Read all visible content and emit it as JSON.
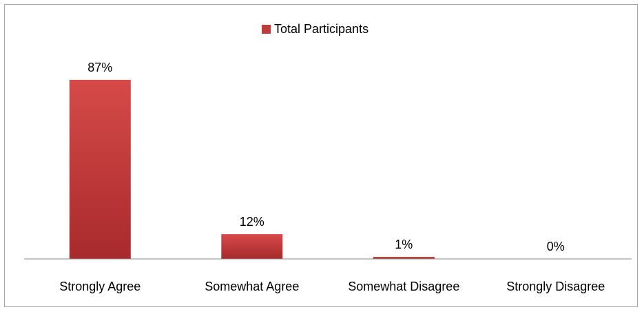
{
  "chart_data": {
    "type": "bar",
    "categories": [
      "Strongly Agree",
      "Somewhat Agree",
      "Somewhat Disagree",
      "Strongly Disagree"
    ],
    "series": [
      {
        "name": "Total Participants",
        "values": [
          87,
          12,
          1,
          0
        ],
        "data_labels": [
          "87%",
          "12%",
          "1%",
          "0%"
        ]
      }
    ],
    "ylim": [
      0,
      100
    ],
    "grid": false,
    "legend_position": "top-center",
    "colors": {
      "bar": "#c0393b",
      "bar_light": "#d64a49",
      "bar_dark": "#a82a2c",
      "axis": "#888888",
      "border": "#a6a6a6"
    }
  },
  "legend": {
    "label": "Total Participants"
  }
}
